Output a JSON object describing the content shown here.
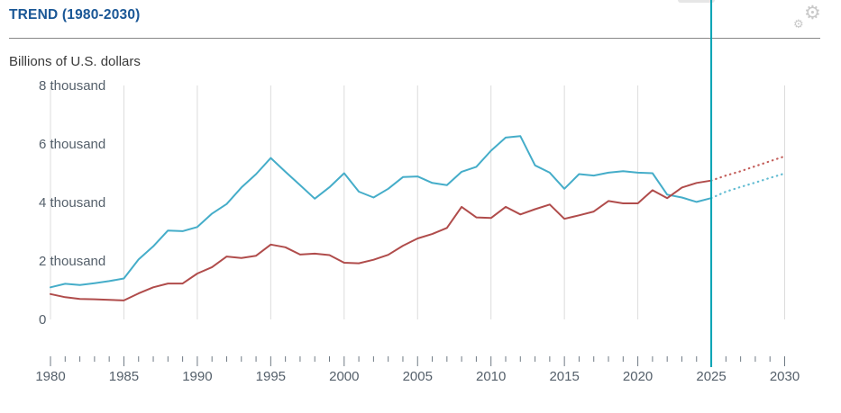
{
  "header": {
    "title": "TREND (1980-2030)"
  },
  "chart_data": {
    "type": "line",
    "title": "TREND (1980-2030)",
    "ylabel": "Billions of U.S. dollars",
    "xlim": [
      1980,
      2030
    ],
    "ylim": [
      0,
      8000
    ],
    "grid": "vertical-only",
    "legend": "none",
    "x_tick_interval_minor": 1,
    "x_tick_interval_labeled": 5,
    "x_tick_labels": [
      "1980",
      "1985",
      "1990",
      "1995",
      "2000",
      "2005",
      "2010",
      "2015",
      "2020",
      "2025",
      "2030"
    ],
    "y_ticks": [
      {
        "value": 0,
        "label": "0"
      },
      {
        "value": 2000,
        "label": "2 thousand"
      },
      {
        "value": 4000,
        "label": "4 thousand"
      },
      {
        "value": 6000,
        "label": "6 thousand"
      },
      {
        "value": 8000,
        "label": "8 thousand"
      }
    ],
    "current_year_marker": 2025,
    "projection_style": "dotted",
    "series": [
      {
        "name": "series-1-blue",
        "color": "#45adc9",
        "projection_color": "#62bcd2",
        "x_start": 1980,
        "values": [
          1130,
          1250,
          1210,
          1270,
          1340,
          1430,
          2080,
          2530,
          3070,
          3050,
          3190,
          3650,
          3980,
          4540,
          5000,
          5550,
          5080,
          4620,
          4160,
          4550,
          5030,
          4400,
          4200,
          4500,
          4900,
          4920,
          4700,
          4620,
          5080,
          5250,
          5800,
          6250,
          6300,
          5300,
          5050,
          4500,
          5000,
          4950,
          5050,
          5100,
          5050,
          5030,
          4300,
          4200,
          4050,
          4180
        ],
        "projection_x_start": 2025,
        "projection_values": [
          4180,
          4400,
          4560,
          4710,
          4870,
          5020
        ]
      },
      {
        "name": "series-2-red",
        "color": "#b04c4b",
        "projection_color": "#c4605c",
        "x_start": 1980,
        "values": [
          900,
          790,
          730,
          720,
          700,
          680,
          920,
          1130,
          1260,
          1260,
          1600,
          1820,
          2180,
          2130,
          2210,
          2590,
          2500,
          2250,
          2280,
          2230,
          1970,
          1950,
          2070,
          2240,
          2550,
          2800,
          2950,
          3160,
          3880,
          3520,
          3500,
          3880,
          3620,
          3800,
          3960,
          3470,
          3590,
          3720,
          4080,
          4000,
          4000,
          4450,
          4180,
          4540,
          4700,
          4780
        ],
        "projection_x_start": 2025,
        "projection_values": [
          4780,
          4950,
          5100,
          5270,
          5440,
          5610
        ]
      }
    ]
  },
  "icons": {
    "settings": "gear-icon"
  },
  "colors": {
    "title": "#1a5796",
    "subtitle_text": "#3a3a3a",
    "axis_text": "#55606b",
    "gridline": "#dcdcdc",
    "tick": "#6f7a84",
    "divider": "#888888",
    "marker_line": "#00a4b4",
    "gear": "#c9c9c9",
    "background": "#ffffff"
  }
}
